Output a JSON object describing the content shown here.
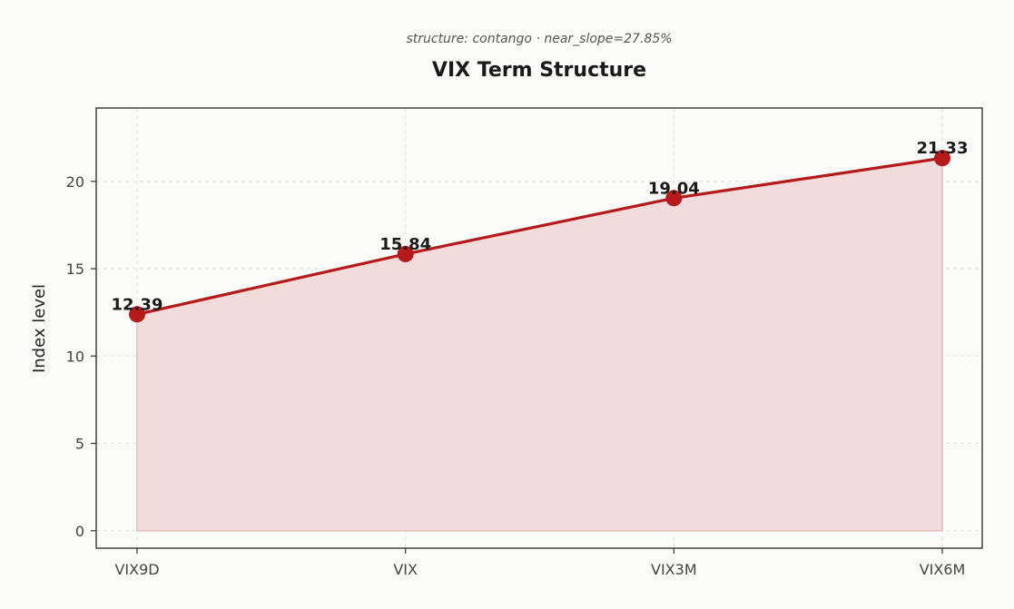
{
  "chart_data": {
    "type": "area",
    "subtitle": "structure: contango · near_slope=27.85%",
    "title": "VIX Term Structure",
    "xlabel": "",
    "ylabel": "Index level",
    "categories": [
      "VIX9D",
      "VIX",
      "VIX3M",
      "VIX6M"
    ],
    "values": [
      12.39,
      15.84,
      19.04,
      21.33
    ],
    "value_labels": [
      "12.39",
      "15.84",
      "19.04",
      "21.33"
    ],
    "ylim": [
      -1,
      24.2
    ],
    "yticks": [
      0,
      5,
      10,
      15,
      20
    ],
    "grid": true,
    "legend": "none",
    "colors": {
      "line": "#b5191a",
      "fill": "#f1dcdb",
      "marker": "#b5191a"
    }
  }
}
